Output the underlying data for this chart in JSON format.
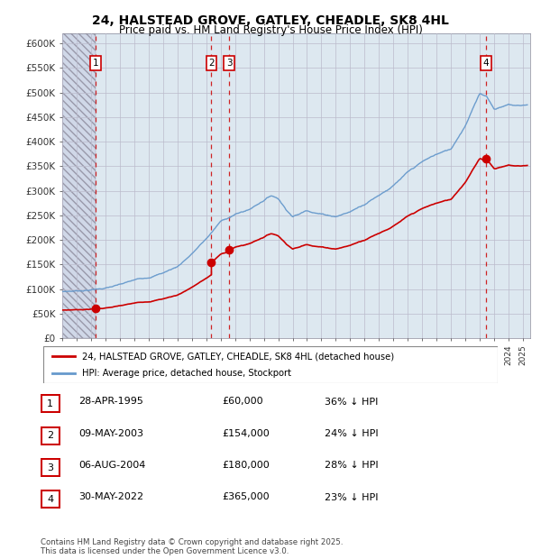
{
  "title": "24, HALSTEAD GROVE, GATLEY, CHEADLE, SK8 4HL",
  "subtitle": "Price paid vs. HM Land Registry's House Price Index (HPI)",
  "footer": "Contains HM Land Registry data © Crown copyright and database right 2025.\nThis data is licensed under the Open Government Licence v3.0.",
  "legend_line1": "24, HALSTEAD GROVE, GATLEY, CHEADLE, SK8 4HL (detached house)",
  "legend_line2": "HPI: Average price, detached house, Stockport",
  "ylabel_ticks": [
    "£0",
    "£50K",
    "£100K",
    "£150K",
    "£200K",
    "£250K",
    "£300K",
    "£350K",
    "£400K",
    "£450K",
    "£500K",
    "£550K",
    "£600K"
  ],
  "ytick_values": [
    0,
    50000,
    100000,
    150000,
    200000,
    250000,
    300000,
    350000,
    400000,
    450000,
    500000,
    550000,
    600000
  ],
  "ylim": [
    0,
    620000
  ],
  "xlim_start": 1993.0,
  "xlim_end": 2025.5,
  "hpi_anchors": [
    [
      1993.0,
      95000
    ],
    [
      1994.0,
      97000
    ],
    [
      1995.0,
      100000
    ],
    [
      1996.0,
      104000
    ],
    [
      1997.0,
      110000
    ],
    [
      1998.0,
      118000
    ],
    [
      1999.0,
      125000
    ],
    [
      2000.0,
      135000
    ],
    [
      2001.0,
      148000
    ],
    [
      2002.0,
      175000
    ],
    [
      2003.0,
      205000
    ],
    [
      2004.0,
      240000
    ],
    [
      2005.0,
      255000
    ],
    [
      2006.0,
      265000
    ],
    [
      2007.5,
      295000
    ],
    [
      2008.0,
      290000
    ],
    [
      2008.5,
      270000
    ],
    [
      2009.0,
      255000
    ],
    [
      2009.5,
      260000
    ],
    [
      2010.0,
      268000
    ],
    [
      2011.0,
      262000
    ],
    [
      2012.0,
      258000
    ],
    [
      2013.0,
      268000
    ],
    [
      2014.0,
      285000
    ],
    [
      2015.0,
      305000
    ],
    [
      2016.0,
      325000
    ],
    [
      2017.0,
      350000
    ],
    [
      2018.0,
      370000
    ],
    [
      2019.0,
      385000
    ],
    [
      2020.0,
      395000
    ],
    [
      2021.0,
      445000
    ],
    [
      2021.5,
      480000
    ],
    [
      2022.0,
      510000
    ],
    [
      2022.5,
      505000
    ],
    [
      2023.0,
      480000
    ],
    [
      2023.5,
      485000
    ],
    [
      2024.0,
      490000
    ],
    [
      2024.5,
      488000
    ],
    [
      2025.3,
      490000
    ]
  ],
  "purchase_events": [
    {
      "num": 1,
      "date": "28-APR-1995",
      "price": 60000,
      "year": 1995.32,
      "pct": "36%",
      "dir": "↓"
    },
    {
      "num": 2,
      "date": "09-MAY-2003",
      "price": 154000,
      "year": 2003.36,
      "pct": "24%",
      "dir": "↓"
    },
    {
      "num": 3,
      "date": "06-AUG-2004",
      "price": 180000,
      "year": 2004.59,
      "pct": "28%",
      "dir": "↓"
    },
    {
      "num": 4,
      "date": "30-MAY-2022",
      "price": 365000,
      "year": 2022.41,
      "pct": "23%",
      "dir": "↓"
    }
  ],
  "price_line_color": "#cc0000",
  "hpi_line_color": "#6699cc",
  "dashed_line_color": "#cc0000",
  "chart_bg_color": "#dde8f0",
  "hatch_bg_color": "#d0d8e8",
  "grid_color": "#bbbbcc",
  "table_rows": [
    [
      "1",
      "28-APR-1995",
      "£60,000",
      "36% ↓ HPI"
    ],
    [
      "2",
      "09-MAY-2003",
      "£154,000",
      "24% ↓ HPI"
    ],
    [
      "3",
      "06-AUG-2004",
      "£180,000",
      "28% ↓ HPI"
    ],
    [
      "4",
      "30-MAY-2022",
      "£365,000",
      "23% ↓ HPI"
    ]
  ],
  "first_purchase_year": 1995.32
}
